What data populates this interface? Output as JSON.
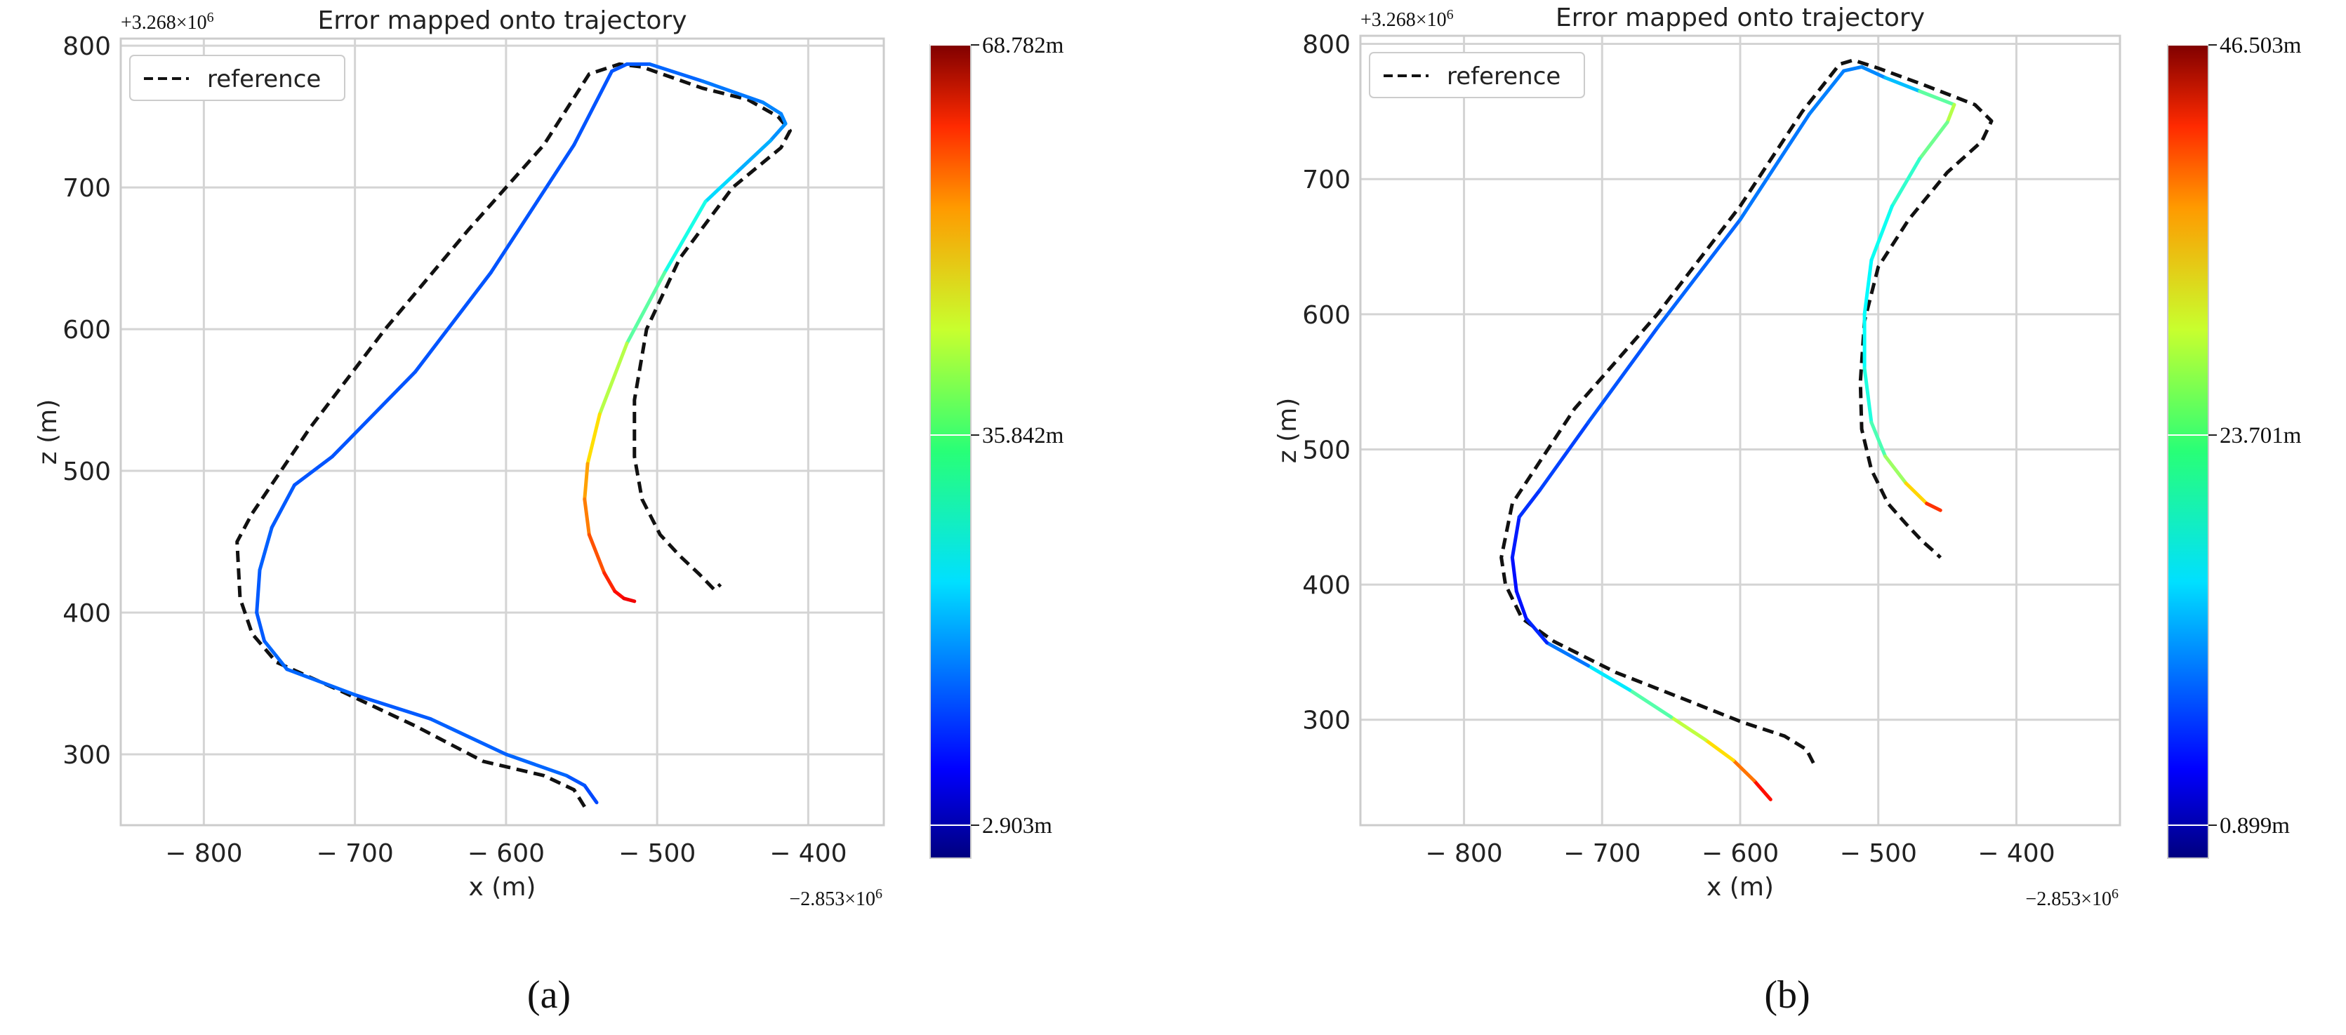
{
  "panels": [
    {
      "caption": "(a)",
      "chart_data": {
        "type": "line",
        "title": "Error mapped onto trajectory",
        "xlabel": "x (m)",
        "ylabel": "z (m)",
        "x_offset_label": "−2.853×10",
        "x_offset_exponent": "6",
        "y_offset_label": "+3.268×10",
        "y_offset_exponent": "6",
        "xlim": [
          -855,
          -350
        ],
        "ylim": [
          250,
          805
        ],
        "xticks": [
          -800,
          -700,
          -600,
          -500,
          -400
        ],
        "xtick_labels": [
          "− 800",
          "− 700",
          "− 600",
          "− 500",
          "− 400"
        ],
        "yticks": [
          300,
          400,
          500,
          600,
          700,
          800
        ],
        "ytick_labels": [
          "300",
          "400",
          "500",
          "600",
          "700",
          "800"
        ],
        "grid": true,
        "legend": {
          "position": "top-left",
          "entries": [
            "reference"
          ]
        },
        "reference": {
          "name": "reference",
          "x": [
            -548,
            -555,
            -575,
            -615,
            -660,
            -710,
            -752,
            -768,
            -776,
            -778,
            -768,
            -730,
            -680,
            -625,
            -575,
            -545,
            -525,
            -510,
            -470,
            -440,
            -420,
            -412,
            -418,
            -450,
            -485,
            -507,
            -515,
            -515,
            -510,
            -498,
            -485,
            -472,
            -462,
            -458
          ],
          "y": [
            263,
            275,
            285,
            295,
            320,
            345,
            365,
            385,
            410,
            450,
            470,
            530,
            600,
            670,
            730,
            780,
            787,
            785,
            770,
            762,
            750,
            740,
            728,
            700,
            650,
            600,
            550,
            510,
            480,
            455,
            440,
            427,
            416,
            420
          ]
        },
        "estimate": {
          "x": [
            -540,
            -548,
            -560,
            -600,
            -650,
            -700,
            -745,
            -760,
            -765,
            -763,
            -755,
            -740,
            -715,
            -660,
            -610,
            -555,
            -530,
            -520,
            -505,
            -470,
            -430,
            -418,
            -415,
            -425,
            -448,
            -468,
            -495,
            -520,
            -538,
            -546,
            -548,
            -545,
            -535,
            -528,
            -522,
            -515
          ],
          "y": [
            266,
            278,
            285,
            300,
            325,
            342,
            360,
            380,
            400,
            430,
            460,
            490,
            510,
            570,
            640,
            730,
            782,
            787,
            787,
            775,
            760,
            752,
            745,
            733,
            710,
            690,
            640,
            590,
            540,
            505,
            480,
            455,
            428,
            415,
            410,
            408
          ],
          "error": [
            10,
            10,
            12,
            13,
            11,
            12,
            13,
            12,
            11,
            12,
            12,
            11,
            11,
            11,
            11,
            11,
            11,
            11,
            12,
            13,
            15,
            15,
            15,
            17,
            20,
            24,
            30,
            35,
            45,
            52,
            55,
            58,
            62,
            65,
            67,
            68.782
          ]
        },
        "colorbar": {
          "colormap": "jet",
          "min": 2.903,
          "max": 68.782,
          "ticks": [
            2.903,
            35.842,
            68.782
          ],
          "tick_labels": [
            "2.903m",
            "35.842m",
            "68.782m"
          ]
        }
      }
    },
    {
      "caption": "(b)",
      "chart_data": {
        "type": "line",
        "title": "Error mapped onto trajectory",
        "xlabel": "x (m)",
        "ylabel": "z (m)",
        "x_offset_label": "−2.853×10",
        "x_offset_exponent": "6",
        "y_offset_label": "+3.268×10",
        "y_offset_exponent": "6",
        "xlim": [
          -875,
          -325
        ],
        "ylim": [
          222,
          806
        ],
        "xticks": [
          -800,
          -700,
          -600,
          -500,
          -400
        ],
        "xtick_labels": [
          "− 800",
          "− 700",
          "− 600",
          "− 500",
          "− 400"
        ],
        "yticks": [
          300,
          400,
          500,
          600,
          700,
          800
        ],
        "ytick_labels": [
          "300",
          "400",
          "500",
          "600",
          "700",
          "800"
        ],
        "grid": true,
        "legend": {
          "position": "top-left",
          "entries": [
            "reference"
          ]
        },
        "reference": {
          "name": "reference",
          "x": [
            -547,
            -552,
            -568,
            -598,
            -640,
            -690,
            -735,
            -758,
            -770,
            -773,
            -765,
            -720,
            -660,
            -600,
            -555,
            -528,
            -518,
            -500,
            -468,
            -430,
            -418,
            -425,
            -450,
            -478,
            -500,
            -510,
            -513,
            -512,
            -505,
            -493,
            -480,
            -468,
            -458,
            -455
          ],
          "y": [
            268,
            278,
            288,
            298,
            315,
            335,
            358,
            375,
            400,
            420,
            460,
            530,
            600,
            680,
            750,
            785,
            788,
            782,
            770,
            755,
            743,
            728,
            705,
            670,
            635,
            595,
            550,
            515,
            485,
            460,
            445,
            432,
            423,
            420
          ],
          "name_shown": true
        },
        "estimate": {
          "x": [
            -578,
            -590,
            -605,
            -625,
            -650,
            -680,
            -710,
            -740,
            -755,
            -762,
            -765,
            -760,
            -745,
            -710,
            -660,
            -600,
            -550,
            -525,
            -512,
            -495,
            -470,
            -445,
            -450,
            -470,
            -490,
            -505,
            -510,
            -510,
            -505,
            -495,
            -480,
            -465,
            -455
          ],
          "y": [
            241,
            255,
            270,
            285,
            302,
            322,
            340,
            357,
            375,
            395,
            420,
            450,
            470,
            520,
            590,
            670,
            748,
            780,
            783,
            775,
            765,
            755,
            742,
            715,
            680,
            640,
            600,
            560,
            520,
            495,
            475,
            460,
            455
          ],
          "error": [
            46.503,
            42,
            35,
            30,
            24,
            18,
            12,
            5,
            3,
            2.5,
            2.5,
            4,
            5,
            6,
            7,
            8,
            9,
            9,
            9,
            10,
            15,
            28,
            25,
            20,
            18,
            16,
            16,
            17,
            19,
            22,
            28,
            38,
            46.503
          ]
        },
        "colorbar": {
          "colormap": "jet",
          "min": 0.899,
          "max": 46.503,
          "ticks": [
            0.899,
            23.701,
            46.503
          ],
          "tick_labels": [
            "0.899m",
            "23.701m",
            "46.503m"
          ]
        }
      }
    }
  ]
}
